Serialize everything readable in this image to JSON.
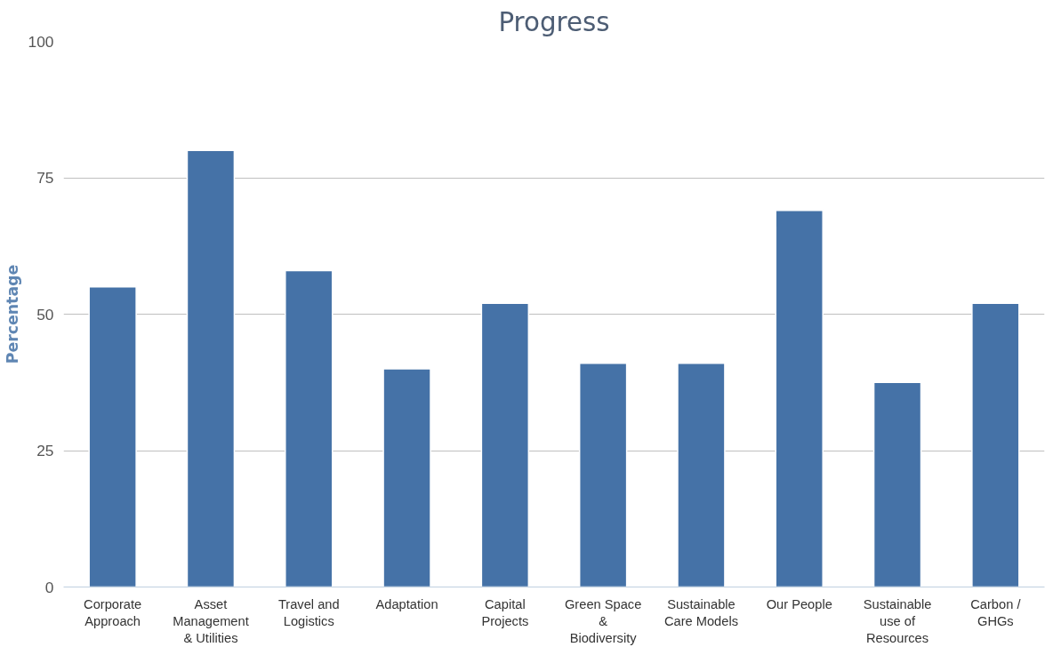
{
  "chart_data": {
    "type": "bar",
    "title": "Progress",
    "ylabel": "Percentage",
    "categories": [
      "Corporate Approach",
      "Asset Management & Utilities",
      "Travel and Logistics",
      "Adaptation",
      "Capital Projects",
      "Green Space & Biodiversity",
      "Sustainable Care Models",
      "Our People",
      "Sustainable use of Resources",
      "Carbon / GHGs"
    ],
    "values": [
      55,
      80,
      58,
      40,
      52,
      41,
      41,
      69,
      37.5,
      52
    ],
    "color": "#4572a7",
    "ylim": [
      0,
      100
    ],
    "yticks": [
      0,
      25,
      50,
      75,
      100
    ],
    "grid": "y"
  }
}
